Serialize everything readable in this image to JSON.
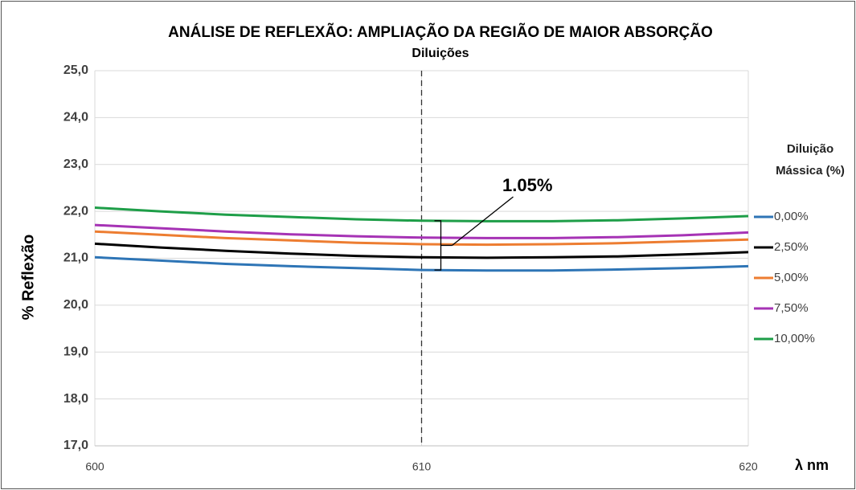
{
  "chart_data": {
    "type": "line",
    "title": "ANÁLISE DE REFLEXÃO: AMPLIAÇÃO DA REGIÃO DE MAIOR ABSORÇÃO",
    "subtitle": "Diluições",
    "xlabel": "λ nm",
    "ylabel": "% Reflexão",
    "legend_title": [
      "Diluição",
      "Mássica (%)"
    ],
    "legend_position": "right",
    "annotation": "1.05%",
    "vline": 610,
    "x": [
      600,
      602,
      604,
      606,
      608,
      610,
      612,
      614,
      616,
      618,
      620
    ],
    "xlim": [
      600,
      620
    ],
    "xticks": [
      600,
      610,
      620
    ],
    "ylim": [
      17,
      25
    ],
    "yticks": [
      {
        "value": 17,
        "label": "17,0"
      },
      {
        "value": 18,
        "label": "18,0"
      },
      {
        "value": 19,
        "label": "19,0"
      },
      {
        "value": 20,
        "label": "20,0"
      },
      {
        "value": 21,
        "label": "21,0"
      },
      {
        "value": 22,
        "label": "22,0"
      },
      {
        "value": 23,
        "label": "23,0"
      },
      {
        "value": 24,
        "label": "24,0"
      },
      {
        "value": 25,
        "label": "25,0"
      }
    ],
    "grid": true,
    "series": [
      {
        "name": "0,00%",
        "color": "#2e75b6",
        "values": [
          21.02,
          20.95,
          20.88,
          20.83,
          20.79,
          20.75,
          20.74,
          20.74,
          20.76,
          20.79,
          20.83
        ]
      },
      {
        "name": "2,50%",
        "color": "#000000",
        "values": [
          21.31,
          21.23,
          21.16,
          21.1,
          21.05,
          21.02,
          21.01,
          21.02,
          21.04,
          21.08,
          21.13
        ]
      },
      {
        "name": "5,00%",
        "color": "#ed7d31",
        "values": [
          21.57,
          21.5,
          21.43,
          21.38,
          21.33,
          21.3,
          21.29,
          21.3,
          21.32,
          21.36,
          21.4
        ]
      },
      {
        "name": "7,50%",
        "color": "#a633b5",
        "values": [
          21.71,
          21.64,
          21.57,
          21.51,
          21.47,
          21.44,
          21.43,
          21.43,
          21.45,
          21.49,
          21.55
        ]
      },
      {
        "name": "10,00%",
        "color": "#1e9e48",
        "values": [
          22.08,
          22.0,
          21.93,
          21.88,
          21.83,
          21.8,
          21.79,
          21.79,
          21.81,
          21.85,
          21.9
        ]
      }
    ]
  }
}
